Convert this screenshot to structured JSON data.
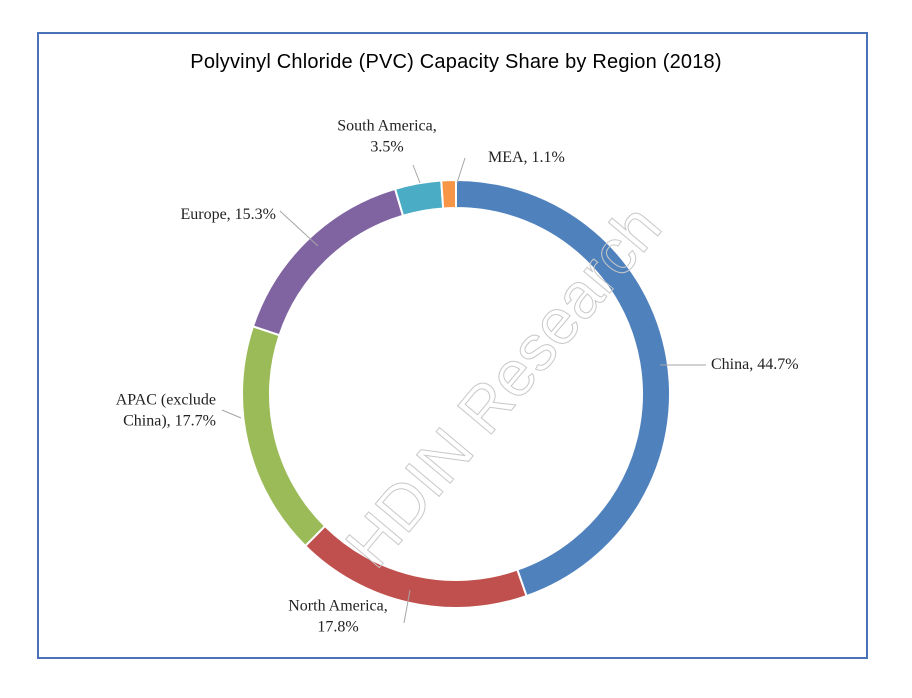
{
  "chart_data": {
    "type": "pie",
    "variant": "donut",
    "title": "Polyvinyl Chloride (PVC) Capacity Share by Region (2018)",
    "start": "12 o'clock",
    "direction": "clockwise",
    "slices": [
      {
        "name": "China",
        "value": 44.7,
        "color": "#4f81bd",
        "label_lines": [
          "China, 44.7%"
        ]
      },
      {
        "name": "North America",
        "value": 17.8,
        "color": "#c0504d",
        "label_lines": [
          "North America,",
          "17.8%"
        ]
      },
      {
        "name": "APAC (exclude China)",
        "value": 17.7,
        "color": "#9bbb59",
        "label_lines": [
          "APAC (exclude",
          "China), 17.7%"
        ]
      },
      {
        "name": "Europe",
        "value": 15.3,
        "color": "#8064a2",
        "label_lines": [
          "Europe, 15.3%"
        ]
      },
      {
        "name": "South America",
        "value": 3.5,
        "color": "#4bacc6",
        "label_lines": [
          "South America,",
          "3.5%"
        ]
      },
      {
        "name": "MEA",
        "value": 1.1,
        "color": "#f79646",
        "label_lines": [
          "MEA,  1.1%"
        ]
      }
    ],
    "legend": "none",
    "watermark": "HDIN Research"
  },
  "frame": {
    "border_color": "#4a72b8"
  }
}
